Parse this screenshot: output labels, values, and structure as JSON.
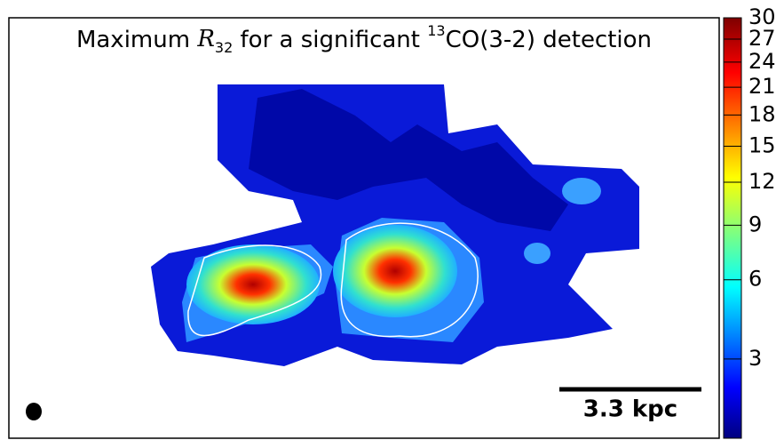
{
  "chart_data": {
    "type": "map",
    "title": [
      "Maximum ",
      "R",
      "32",
      " for a significant ",
      "13",
      "CO(3-2) detection"
    ],
    "scale_bar_label": "3.3 kpc",
    "colorbar": {
      "clim": [
        1.25,
        30
      ],
      "power": 0.3,
      "colormap": "jet",
      "ticks": [
        3,
        6,
        9,
        12,
        15,
        18,
        21,
        24,
        27,
        30
      ]
    }
  }
}
